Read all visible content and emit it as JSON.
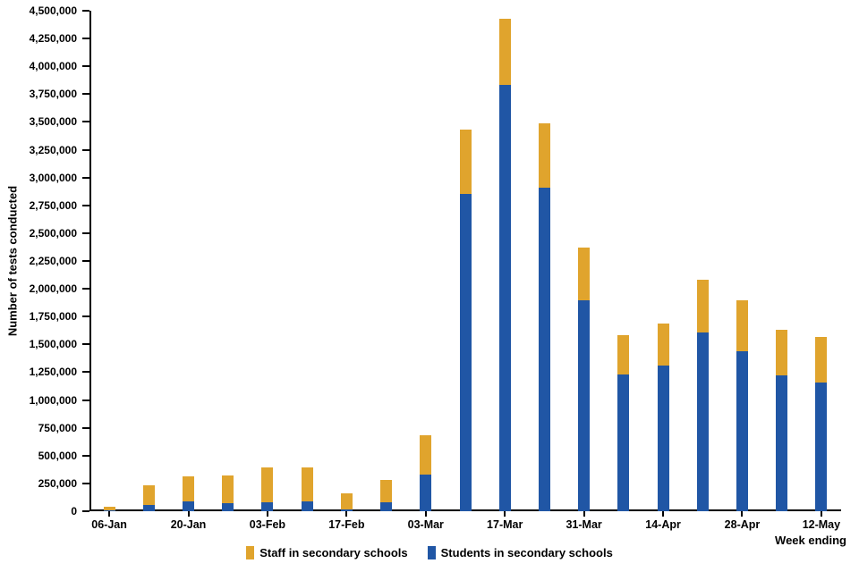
{
  "chart_data": {
    "type": "bar",
    "stacked": true,
    "title": "",
    "ylabel": "Number of tests conducted",
    "xlabel": "Week ending",
    "ylim": [
      0,
      4500000
    ],
    "ytick_interval": 250000,
    "grid": false,
    "legend_position": "bottom",
    "categories": [
      "06-Jan",
      "13-Jan",
      "20-Jan",
      "27-Jan",
      "03-Feb",
      "10-Feb",
      "17-Feb",
      "24-Feb",
      "03-Mar",
      "10-Mar",
      "17-Mar",
      "24-Mar",
      "31-Mar",
      "07-Apr",
      "14-Apr",
      "21-Apr",
      "28-Apr",
      "05-May",
      "12-May"
    ],
    "x_labels_shown": [
      "06-Jan",
      "20-Jan",
      "03-Feb",
      "17-Feb",
      "03-Mar",
      "17-Mar",
      "31-Mar",
      "14-Apr",
      "28-Apr",
      "12-May"
    ],
    "series": [
      {
        "name": "Students in secondary schools",
        "color": "#2056a5",
        "values": [
          5000,
          60000,
          90000,
          75000,
          80000,
          85000,
          20000,
          80000,
          330000,
          2850000,
          3830000,
          2910000,
          1900000,
          1230000,
          1310000,
          1610000,
          1440000,
          1220000,
          1160000
        ]
      },
      {
        "name": "Staff in secondary schools",
        "color": "#e0a42d",
        "values": [
          35000,
          170000,
          220000,
          245000,
          310000,
          310000,
          140000,
          205000,
          350000,
          580000,
          600000,
          580000,
          470000,
          350000,
          380000,
          470000,
          460000,
          410000,
          410000
        ]
      }
    ],
    "legend": [
      {
        "label": "Staff in secondary schools",
        "color": "#e0a42d"
      },
      {
        "label": "Students in secondary schools",
        "color": "#2056a5"
      }
    ]
  }
}
